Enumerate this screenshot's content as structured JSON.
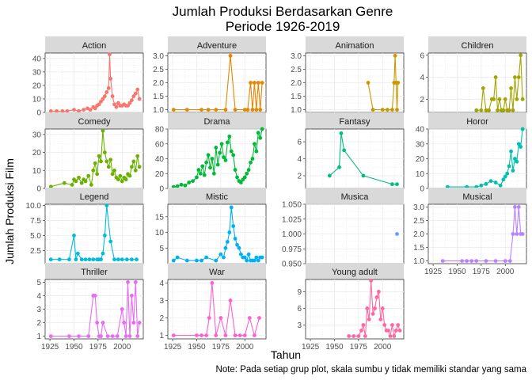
{
  "chart_data": {
    "type": "line",
    "title_lines": [
      "Jumlah Produksi Berdasarkan Genre",
      "Periode 1926-2019"
    ],
    "xlabel": "Tahun",
    "ylabel": "Jumlah Produksi Film",
    "note": "Note: Pada setiap grup plot, skala sumbu y tidak memiliki standar yang sama",
    "xlim": [
      1920,
      2022
    ],
    "x_ticks": [
      1925,
      1950,
      1975,
      2000
    ],
    "panel_bg": "#ffffff",
    "strip_bg": "#d9d9d9",
    "grid_color": "#ebebeb",
    "facets": [
      {
        "name": "Action",
        "color": "#F8766D",
        "ylim": [
          0,
          44
        ],
        "y_ticks": [
          0,
          10,
          20,
          30,
          40
        ],
        "x": [
          1926,
          1932,
          1938,
          1943,
          1950,
          1955,
          1960,
          1964,
          1967,
          1970,
          1972,
          1974,
          1976,
          1978,
          1980,
          1982,
          1984,
          1986,
          1987,
          1988,
          1990,
          1992,
          1994,
          1996,
          1998,
          2000,
          2002,
          2004,
          2006,
          2008,
          2010,
          2012,
          2014,
          2016,
          2018
        ],
        "y": [
          1,
          1,
          1,
          1,
          2,
          1,
          2,
          3,
          2,
          4,
          3,
          5,
          6,
          8,
          10,
          12,
          15,
          18,
          43,
          25,
          12,
          6,
          4,
          7,
          5,
          5,
          6,
          5,
          5,
          7,
          9,
          12,
          14,
          17,
          10
        ]
      },
      {
        "name": "Adventure",
        "color": "#E58700",
        "ylim": [
          0.9,
          3.1
        ],
        "y_ticks": [
          1.0,
          1.5,
          2.0,
          2.5,
          3.0
        ],
        "x": [
          1926,
          1940,
          1955,
          1962,
          1970,
          1980,
          1985,
          1990,
          2000,
          2003,
          2006,
          2008,
          2010,
          2012,
          2014,
          2016,
          2018
        ],
        "y": [
          1,
          1,
          1,
          1,
          1,
          1,
          3,
          1,
          1,
          1,
          2,
          1,
          2,
          1,
          2,
          1,
          2
        ]
      },
      {
        "name": "Animation",
        "color": "#C99800",
        "ylim": [
          0.9,
          3.1
        ],
        "y_ticks": [
          1.0,
          1.5,
          2.0,
          2.5,
          3.0
        ],
        "x": [
          1985,
          1990,
          2000,
          2005,
          2010,
          2012,
          2013,
          2014,
          2015,
          2016
        ],
        "y": [
          2,
          1,
          1,
          1,
          1,
          2,
          3,
          2,
          1,
          2
        ]
      },
      {
        "name": "Children",
        "color": "#A3A500",
        "ylim": [
          0.8,
          6.2
        ],
        "y_ticks": [
          2,
          4,
          6
        ],
        "x": [
          1970,
          1975,
          1977,
          1980,
          1983,
          1986,
          1988,
          1990,
          1992,
          1994,
          1996,
          1998,
          2000,
          2002,
          2004,
          2006,
          2008,
          2010,
          2012,
          2014,
          2016,
          2018
        ],
        "y": [
          1,
          1,
          3,
          1,
          1,
          2,
          2,
          4,
          1,
          2,
          1,
          1,
          2,
          1,
          1,
          3,
          1,
          4,
          2,
          4,
          6,
          2
        ]
      },
      {
        "name": "Comedy",
        "color": "#6BB100",
        "ylim": [
          0,
          33
        ],
        "y_ticks": [
          0,
          10,
          20,
          30
        ],
        "x": [
          1926,
          1940,
          1948,
          1950,
          1952,
          1955,
          1958,
          1960,
          1962,
          1965,
          1968,
          1970,
          1972,
          1974,
          1976,
          1978,
          1980,
          1982,
          1984,
          1986,
          1988,
          1990,
          1992,
          1994,
          1996,
          1998,
          2000,
          2002,
          2004,
          2006,
          2008,
          2010,
          2012,
          2014,
          2016,
          2018
        ],
        "y": [
          1,
          3,
          2,
          5,
          4,
          6,
          3,
          5,
          4,
          7,
          2,
          10,
          14,
          8,
          18,
          15,
          32,
          20,
          15,
          12,
          16,
          8,
          10,
          6,
          5,
          7,
          4,
          6,
          5,
          8,
          7,
          12,
          15,
          10,
          18,
          12
        ]
      },
      {
        "name": "Drama",
        "color": "#00BA38",
        "ylim": [
          0,
          80
        ],
        "y_ticks": [
          0,
          20,
          40,
          60,
          80
        ],
        "x": [
          1926,
          1930,
          1934,
          1938,
          1942,
          1946,
          1950,
          1952,
          1954,
          1956,
          1958,
          1960,
          1962,
          1964,
          1966,
          1968,
          1970,
          1972,
          1974,
          1976,
          1978,
          1980,
          1982,
          1984,
          1986,
          1988,
          1990,
          1992,
          1994,
          1996,
          1998,
          2000,
          2002,
          2004,
          2006,
          2008,
          2010,
          2012,
          2014,
          2016,
          2018
        ],
        "y": [
          2,
          3,
          5,
          4,
          8,
          10,
          15,
          25,
          20,
          30,
          18,
          35,
          45,
          28,
          40,
          20,
          55,
          32,
          48,
          60,
          42,
          38,
          62,
          70,
          50,
          45,
          25,
          15,
          10,
          8,
          12,
          15,
          20,
          25,
          35,
          40,
          60,
          50,
          75,
          68,
          80
        ]
      },
      {
        "name": "Fantasy",
        "color": "#00BF7D",
        "ylim": [
          0.5,
          7.5
        ],
        "y_ticks": [
          2,
          4,
          6
        ],
        "x": [
          1945,
          1955,
          1957,
          1960,
          1980,
          2010,
          2015
        ],
        "y": [
          2,
          3,
          7,
          5,
          2,
          1,
          1
        ]
      },
      {
        "name": "Horor",
        "color": "#00C0AF",
        "ylim": [
          0,
          40
        ],
        "y_ticks": [
          0,
          10,
          20,
          30,
          40
        ],
        "x": [
          1940,
          1960,
          1970,
          1975,
          1980,
          1985,
          1990,
          1995,
          1998,
          2000,
          2002,
          2004,
          2006,
          2008,
          2010,
          2012,
          2014,
          2016,
          2018
        ],
        "y": [
          1,
          1,
          1,
          2,
          3,
          5,
          4,
          2,
          6,
          8,
          10,
          15,
          25,
          12,
          20,
          18,
          30,
          28,
          40
        ]
      },
      {
        "name": "Legend",
        "color": "#00BCD8",
        "ylim": [
          0.3,
          10.2
        ],
        "y_ticks": [
          2.5,
          5.0,
          7.5,
          10.0
        ],
        "x": [
          1926,
          1935,
          1945,
          1950,
          1952,
          1954,
          1958,
          1962,
          1966,
          1970,
          1974,
          1976,
          1978,
          1980,
          1982,
          1984,
          1988,
          1992,
          1996,
          2000,
          2005,
          2010,
          2015
        ],
        "y": [
          1,
          1,
          1,
          5,
          1,
          2,
          1,
          1,
          1,
          1,
          1,
          1,
          1,
          2,
          5,
          10,
          4,
          1,
          1,
          1,
          1,
          1,
          1
        ]
      },
      {
        "name": "Mistic",
        "color": "#00B0F6",
        "ylim": [
          0,
          19
        ],
        "y_ticks": [
          5,
          10,
          15
        ],
        "x": [
          1926,
          1930,
          1940,
          1950,
          1955,
          1960,
          1970,
          1975,
          1978,
          1980,
          1982,
          1984,
          1986,
          1988,
          1990,
          1992,
          1994,
          1996,
          1998,
          2000,
          2002,
          2004,
          2006,
          2008,
          2010,
          2012,
          2014,
          2016,
          2018
        ],
        "y": [
          1,
          2,
          1,
          1,
          1,
          2,
          1,
          3,
          2,
          5,
          7,
          10,
          18,
          12,
          8,
          6,
          5,
          3,
          2,
          2,
          1,
          3,
          1,
          1,
          1,
          2,
          1,
          2,
          2
        ]
      },
      {
        "name": "Musica",
        "color": "#619CFF",
        "ylim": [
          0.95,
          1.05
        ],
        "y_ticks": [
          0.95,
          0.975,
          1.0,
          1.025,
          1.05
        ],
        "x": [
          2015
        ],
        "y": [
          1
        ]
      },
      {
        "name": "Musical",
        "color": "#B983FF",
        "ylim": [
          0.9,
          3.1
        ],
        "y_ticks": [
          1.0,
          1.5,
          2.0,
          2.5,
          3.0
        ],
        "x": [
          1935,
          1955,
          1960,
          1965,
          1970,
          1980,
          1990,
          2000,
          2005,
          2008,
          2010,
          2012,
          2014,
          2016,
          2018
        ],
        "y": [
          1,
          1,
          1,
          1,
          1,
          1,
          1,
          1,
          1,
          2,
          3,
          2,
          3,
          2,
          2
        ]
      },
      {
        "name": "Thriller",
        "color": "#E76BF3",
        "ylim": [
          0.8,
          5.2
        ],
        "y_ticks": [
          1,
          2,
          3,
          4,
          5
        ],
        "x": [
          1926,
          1945,
          1955,
          1965,
          1970,
          1972,
          1974,
          1976,
          1978,
          1980,
          1985,
          1990,
          1995,
          2000,
          2002,
          2004,
          2006,
          2008,
          2010,
          2012,
          2014,
          2016,
          2018
        ],
        "y": [
          1,
          1,
          1,
          1,
          4,
          4,
          2,
          1,
          1,
          2,
          1,
          1,
          1,
          3,
          2,
          1,
          5,
          1,
          4,
          2,
          5,
          1,
          2
        ]
      },
      {
        "name": "War",
        "color": "#FD61D1",
        "ylim": [
          0.8,
          4.2
        ],
        "y_ticks": [
          1,
          2,
          3,
          4
        ],
        "x": [
          1926,
          1950,
          1955,
          1960,
          1963,
          1966,
          1970,
          1975,
          1980,
          1985,
          1990,
          1995,
          2000,
          2005,
          2010,
          2015
        ],
        "y": [
          1,
          1,
          1,
          1,
          2,
          4,
          1,
          2,
          1,
          3,
          1,
          1,
          1,
          2,
          1,
          2
        ]
      },
      {
        "name": "Young adult",
        "color": "#FF67A4",
        "ylim": [
          0.5,
          11.2
        ],
        "y_ticks": [
          3,
          6,
          9
        ],
        "x": [
          1965,
          1970,
          1975,
          1978,
          1980,
          1982,
          1984,
          1986,
          1988,
          1990,
          1992,
          1994,
          1996,
          1998,
          2000,
          2002,
          2004,
          2006,
          2008,
          2010,
          2012,
          2014,
          2016,
          2018
        ],
        "y": [
          1,
          1,
          1,
          2,
          3,
          1,
          6,
          4,
          11,
          5,
          6,
          8,
          9,
          4,
          6,
          3,
          2,
          2,
          1,
          3,
          1,
          2,
          3,
          2
        ]
      }
    ]
  }
}
